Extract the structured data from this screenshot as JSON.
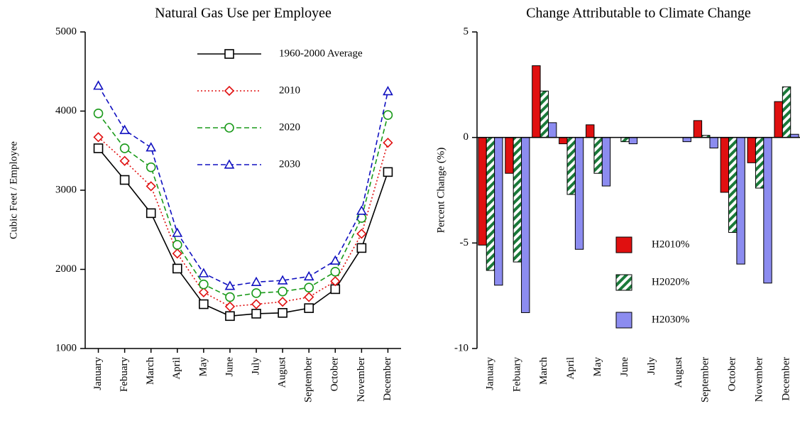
{
  "chart_data": [
    {
      "type": "line",
      "title": "Natural Gas Use per Employee",
      "y_label": "Cubic Feet / Employee",
      "categories": [
        "January",
        "Febuary",
        "March",
        "April",
        "May",
        "June",
        "July",
        "August",
        "September",
        "October",
        "November",
        "December"
      ],
      "ylim": [
        1000,
        5000
      ],
      "yticks": [
        1000,
        2000,
        3000,
        4000,
        5000
      ],
      "legend": "upper right",
      "series": [
        {
          "name": "1960-2000  Average",
          "color": "#000000",
          "marker": "square",
          "linestyle": "solid",
          "values": [
            3530,
            3130,
            2710,
            2010,
            1560,
            1410,
            1440,
            1450,
            1510,
            1750,
            2270,
            3230
          ]
        },
        {
          "name": "2010",
          "color": "#e01010",
          "marker": "diamond",
          "linestyle": "dotted",
          "values": [
            3670,
            3370,
            3050,
            2200,
            1710,
            1530,
            1560,
            1590,
            1650,
            1850,
            2450,
            3600
          ]
        },
        {
          "name": "2020",
          "color": "#1a9a1a",
          "marker": "circle",
          "linestyle": "dashed",
          "values": [
            3970,
            3530,
            3290,
            2310,
            1810,
            1650,
            1700,
            1720,
            1770,
            1970,
            2650,
            3950
          ]
        },
        {
          "name": "2030",
          "color": "#1010c0",
          "marker": "triangle",
          "linestyle": "dashed",
          "values": [
            4320,
            3760,
            3540,
            2460,
            1950,
            1790,
            1840,
            1860,
            1910,
            2110,
            2740,
            4250
          ]
        }
      ]
    },
    {
      "type": "bar",
      "title": "Change Attributable to Climate Change",
      "y_label": "Percent Change (%)",
      "categories": [
        "January",
        "Febuary",
        "March",
        "April",
        "May",
        "June",
        "July",
        "August",
        "September",
        "October",
        "November",
        "December"
      ],
      "ylim": [
        -10,
        5
      ],
      "yticks": [
        -10,
        -5,
        0,
        5
      ],
      "legend": "lower right",
      "series": [
        {
          "name": "H2010%",
          "color": "#e01010",
          "hatch": false,
          "values": [
            -5.1,
            -1.7,
            3.4,
            -0.3,
            0.6,
            0,
            0,
            0,
            0.8,
            -2.6,
            -1.2,
            1.7
          ]
        },
        {
          "name": "H2020%",
          "color": "#1a7a3a",
          "hatch": true,
          "values": [
            -6.3,
            -5.9,
            2.2,
            -2.7,
            -1.7,
            -0.2,
            0,
            0,
            0.1,
            -4.5,
            -2.4,
            2.4
          ]
        },
        {
          "name": "H2030%",
          "color": "#8c8cf0",
          "hatch": false,
          "values": [
            -7.0,
            -8.3,
            0.7,
            -5.3,
            -2.3,
            -0.3,
            0,
            -0.2,
            -0.5,
            -6.0,
            -6.9,
            0.15
          ]
        }
      ]
    }
  ]
}
